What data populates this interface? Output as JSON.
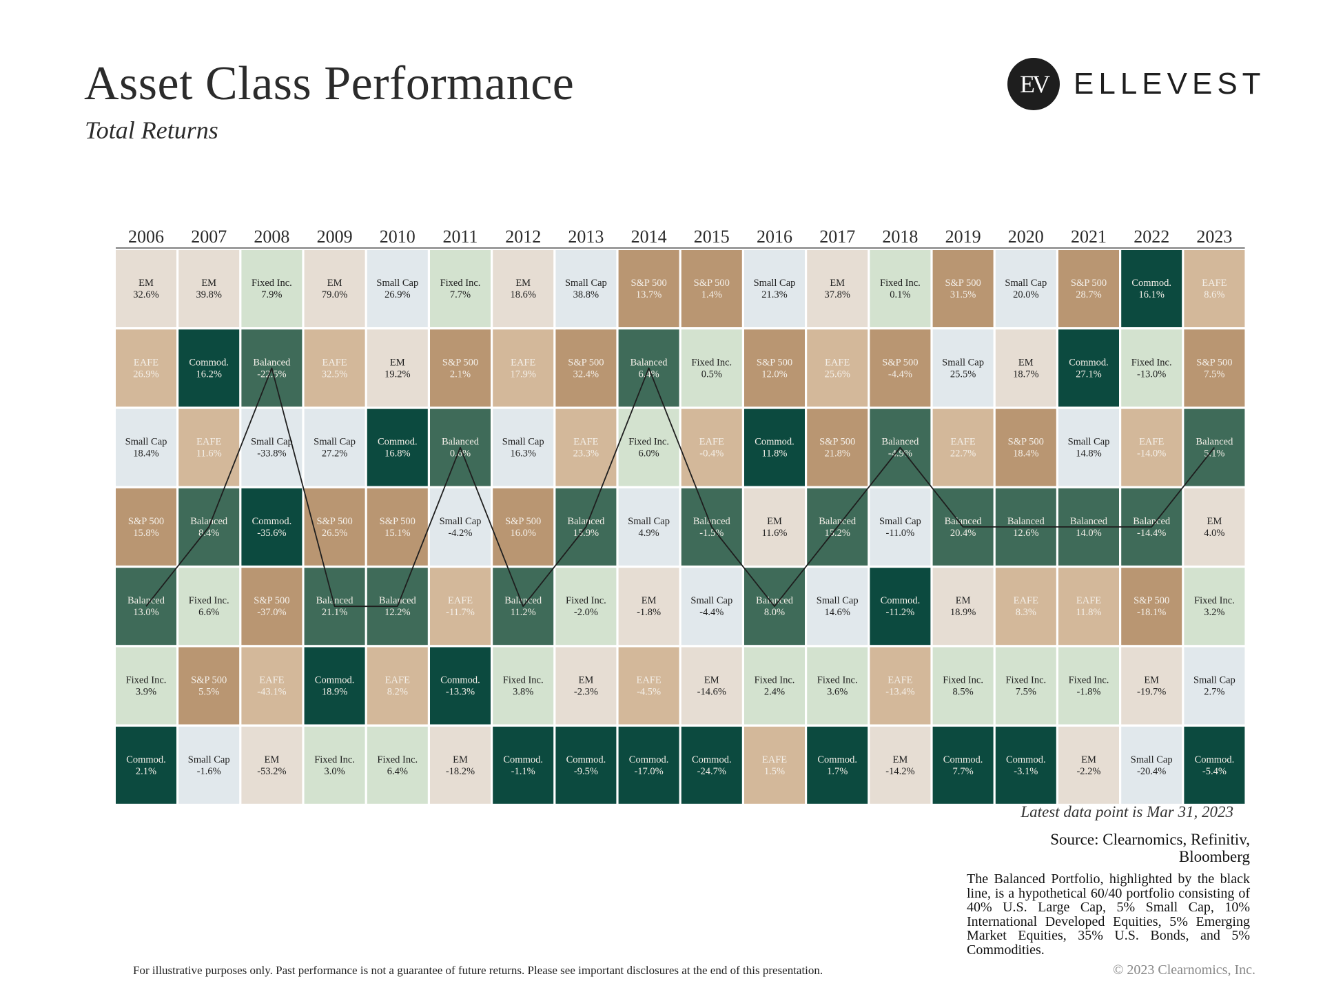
{
  "header": {
    "title": "Asset Class Performance",
    "subtitle": "Total Returns",
    "logo_mark": "EV",
    "logo_text": "ELLEVEST"
  },
  "notes": {
    "latest": "Latest data point is Mar 31, 2023",
    "source": "Source: Clearnomics, Refinitiv, Bloomberg",
    "balanced": "The Balanced Portfolio, highlighted by the black line, is a hypothetical 60/40 portfolio consisting of 40% U.S. Large Cap, 5% Small Cap, 10% International Developed Equities, 5% Emerging Market Equities, 35% U.S. Bonds, and 5% Commodities.",
    "disclaimer": "For illustrative purposes only. Past performance is not a guarantee of future returns. Please see important disclosures at the end of this presentation.",
    "copyright": "© 2023 Clearnomics, Inc."
  },
  "colors": {
    "EM": "#e6ddd3",
    "EAFE": "#d3b89a",
    "S&P 500": "#b99672",
    "Small Cap": "#e1e8ec",
    "Fixed Inc.": "#d3e2cf",
    "Balanced": "#3f6b59",
    "Commod.": "#0c4a3f",
    "line": "#1e1e1e"
  },
  "chart_data": {
    "type": "table",
    "title": "Asset Class Performance",
    "subtitle": "Total Returns",
    "highlight_series": "Balanced",
    "years": [
      "2006",
      "2007",
      "2008",
      "2009",
      "2010",
      "2011",
      "2012",
      "2013",
      "2014",
      "2015",
      "2016",
      "2017",
      "2018",
      "2019",
      "2020",
      "2021",
      "2022",
      "2023"
    ],
    "columns": [
      [
        [
          "EM",
          "32.6%"
        ],
        [
          "EAFE",
          "26.9%"
        ],
        [
          "Small Cap",
          "18.4%"
        ],
        [
          "S&P 500",
          "15.8%"
        ],
        [
          "Balanced",
          "13.0%"
        ],
        [
          "Fixed Inc.",
          "3.9%"
        ],
        [
          "Commod.",
          "2.1%"
        ]
      ],
      [
        [
          "EM",
          "39.8%"
        ],
        [
          "Commod.",
          "16.2%"
        ],
        [
          "EAFE",
          "11.6%"
        ],
        [
          "Balanced",
          "8.4%"
        ],
        [
          "Fixed Inc.",
          "6.6%"
        ],
        [
          "S&P 500",
          "5.5%"
        ],
        [
          "Small Cap",
          "-1.6%"
        ]
      ],
      [
        [
          "Fixed Inc.",
          "7.9%"
        ],
        [
          "Balanced",
          "-22.5%"
        ],
        [
          "Small Cap",
          "-33.8%"
        ],
        [
          "Commod.",
          "-35.6%"
        ],
        [
          "S&P 500",
          "-37.0%"
        ],
        [
          "EAFE",
          "-43.1%"
        ],
        [
          "EM",
          "-53.2%"
        ]
      ],
      [
        [
          "EM",
          "79.0%"
        ],
        [
          "EAFE",
          "32.5%"
        ],
        [
          "Small Cap",
          "27.2%"
        ],
        [
          "S&P 500",
          "26.5%"
        ],
        [
          "Balanced",
          "21.1%"
        ],
        [
          "Commod.",
          "18.9%"
        ],
        [
          "Fixed Inc.",
          "3.0%"
        ]
      ],
      [
        [
          "Small Cap",
          "26.9%"
        ],
        [
          "EM",
          "19.2%"
        ],
        [
          "Commod.",
          "16.8%"
        ],
        [
          "S&P 500",
          "15.1%"
        ],
        [
          "Balanced",
          "12.2%"
        ],
        [
          "EAFE",
          "8.2%"
        ],
        [
          "Fixed Inc.",
          "6.4%"
        ]
      ],
      [
        [
          "Fixed Inc.",
          "7.7%"
        ],
        [
          "S&P 500",
          "2.1%"
        ],
        [
          "Balanced",
          "0.6%"
        ],
        [
          "Small Cap",
          "-4.2%"
        ],
        [
          "EAFE",
          "-11.7%"
        ],
        [
          "Commod.",
          "-13.3%"
        ],
        [
          "EM",
          "-18.2%"
        ]
      ],
      [
        [
          "EM",
          "18.6%"
        ],
        [
          "EAFE",
          "17.9%"
        ],
        [
          "Small Cap",
          "16.3%"
        ],
        [
          "S&P 500",
          "16.0%"
        ],
        [
          "Balanced",
          "11.2%"
        ],
        [
          "Fixed Inc.",
          "3.8%"
        ],
        [
          "Commod.",
          "-1.1%"
        ]
      ],
      [
        [
          "Small Cap",
          "38.8%"
        ],
        [
          "S&P 500",
          "32.4%"
        ],
        [
          "EAFE",
          "23.3%"
        ],
        [
          "Balanced",
          "15.9%"
        ],
        [
          "Fixed Inc.",
          "-2.0%"
        ],
        [
          "EM",
          "-2.3%"
        ],
        [
          "Commod.",
          "-9.5%"
        ]
      ],
      [
        [
          "S&P 500",
          "13.7%"
        ],
        [
          "Balanced",
          "6.4%"
        ],
        [
          "Fixed Inc.",
          "6.0%"
        ],
        [
          "Small Cap",
          "4.9%"
        ],
        [
          "EM",
          "-1.8%"
        ],
        [
          "EAFE",
          "-4.5%"
        ],
        [
          "Commod.",
          "-17.0%"
        ]
      ],
      [
        [
          "S&P 500",
          "1.4%"
        ],
        [
          "Fixed Inc.",
          "0.5%"
        ],
        [
          "EAFE",
          "-0.4%"
        ],
        [
          "Balanced",
          "-1.5%"
        ],
        [
          "Small Cap",
          "-4.4%"
        ],
        [
          "EM",
          "-14.6%"
        ],
        [
          "Commod.",
          "-24.7%"
        ]
      ],
      [
        [
          "Small Cap",
          "21.3%"
        ],
        [
          "S&P 500",
          "12.0%"
        ],
        [
          "Commod.",
          "11.8%"
        ],
        [
          "EM",
          "11.6%"
        ],
        [
          "Balanced",
          "8.0%"
        ],
        [
          "Fixed Inc.",
          "2.4%"
        ],
        [
          "EAFE",
          "1.5%"
        ]
      ],
      [
        [
          "EM",
          "37.8%"
        ],
        [
          "EAFE",
          "25.6%"
        ],
        [
          "S&P 500",
          "21.8%"
        ],
        [
          "Balanced",
          "15.2%"
        ],
        [
          "Small Cap",
          "14.6%"
        ],
        [
          "Fixed Inc.",
          "3.6%"
        ],
        [
          "Commod.",
          "1.7%"
        ]
      ],
      [
        [
          "Fixed Inc.",
          "0.1%"
        ],
        [
          "S&P 500",
          "-4.4%"
        ],
        [
          "Balanced",
          "-4.9%"
        ],
        [
          "Small Cap",
          "-11.0%"
        ],
        [
          "Commod.",
          "-11.2%"
        ],
        [
          "EAFE",
          "-13.4%"
        ],
        [
          "EM",
          "-14.2%"
        ]
      ],
      [
        [
          "S&P 500",
          "31.5%"
        ],
        [
          "Small Cap",
          "25.5%"
        ],
        [
          "EAFE",
          "22.7%"
        ],
        [
          "Balanced",
          "20.4%"
        ],
        [
          "EM",
          "18.9%"
        ],
        [
          "Fixed Inc.",
          "8.5%"
        ],
        [
          "Commod.",
          "7.7%"
        ]
      ],
      [
        [
          "Small Cap",
          "20.0%"
        ],
        [
          "EM",
          "18.7%"
        ],
        [
          "S&P 500",
          "18.4%"
        ],
        [
          "Balanced",
          "12.6%"
        ],
        [
          "EAFE",
          "8.3%"
        ],
        [
          "Fixed Inc.",
          "7.5%"
        ],
        [
          "Commod.",
          "-3.1%"
        ]
      ],
      [
        [
          "S&P 500",
          "28.7%"
        ],
        [
          "Commod.",
          "27.1%"
        ],
        [
          "Small Cap",
          "14.8%"
        ],
        [
          "Balanced",
          "14.0%"
        ],
        [
          "EAFE",
          "11.8%"
        ],
        [
          "Fixed Inc.",
          "-1.8%"
        ],
        [
          "EM",
          "-2.2%"
        ]
      ],
      [
        [
          "Commod.",
          "16.1%"
        ],
        [
          "Fixed Inc.",
          "-13.0%"
        ],
        [
          "EAFE",
          "-14.0%"
        ],
        [
          "Balanced",
          "-14.4%"
        ],
        [
          "S&P 500",
          "-18.1%"
        ],
        [
          "EM",
          "-19.7%"
        ],
        [
          "Small Cap",
          "-20.4%"
        ]
      ],
      [
        [
          "EAFE",
          "8.6%"
        ],
        [
          "S&P 500",
          "7.5%"
        ],
        [
          "Balanced",
          "5.1%"
        ],
        [
          "EM",
          "4.0%"
        ],
        [
          "Fixed Inc.",
          "3.2%"
        ],
        [
          "Small Cap",
          "2.7%"
        ],
        [
          "Commod.",
          "-5.4%"
        ]
      ]
    ]
  }
}
